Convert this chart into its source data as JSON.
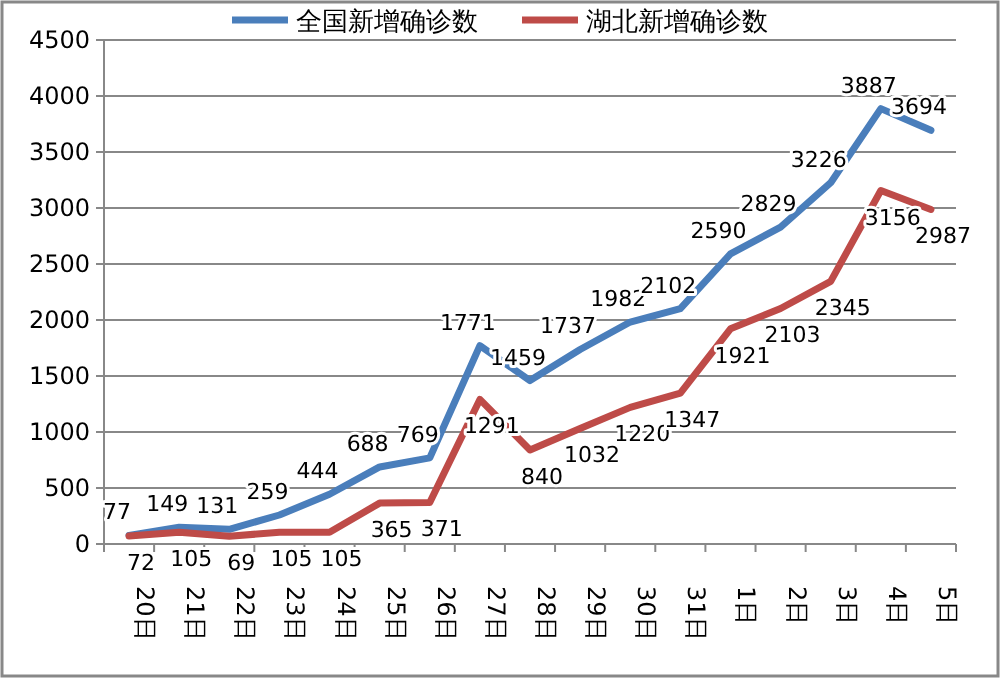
{
  "chart_data": {
    "type": "line",
    "categories": [
      "20日",
      "21日",
      "22日",
      "23日",
      "24日",
      "25日",
      "26日",
      "27日",
      "28日",
      "29日",
      "30日",
      "31日",
      "1日",
      "2日",
      "3日",
      "4日",
      "5日"
    ],
    "series": [
      {
        "name": "全国新增确诊数",
        "color": "#4a7ebb",
        "values": [
          77,
          149,
          131,
          259,
          444,
          688,
          769,
          1771,
          1459,
          1737,
          1982,
          2102,
          2590,
          2829,
          3226,
          3887,
          3694
        ]
      },
      {
        "name": "湖北新增确诊数",
        "color": "#be4b48",
        "values": [
          72,
          105,
          69,
          105,
          105,
          365,
          371,
          1291,
          840,
          1032,
          1220,
          1347,
          1921,
          2103,
          2345,
          3156,
          2987
        ]
      }
    ],
    "ylim": [
      0,
      4500
    ],
    "yticks": [
      0,
      500,
      1000,
      1500,
      2000,
      2500,
      3000,
      3500,
      4000,
      4500
    ],
    "grid": "y",
    "legend": "top",
    "data_labels": true,
    "marker": "none",
    "line_style": "solid"
  }
}
